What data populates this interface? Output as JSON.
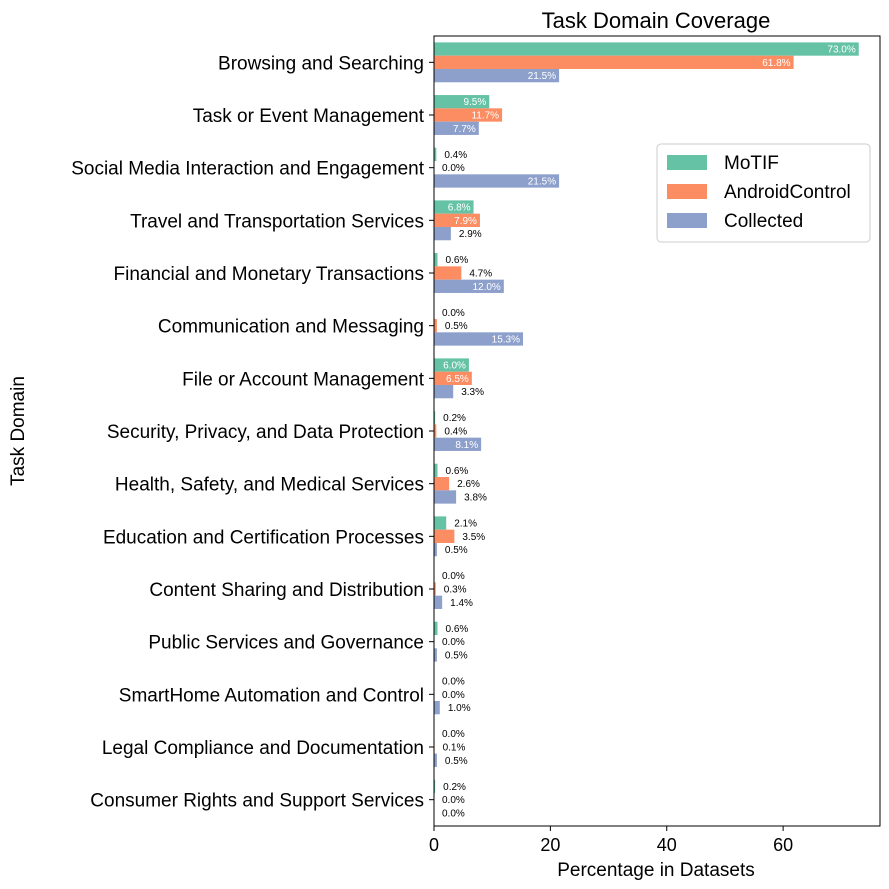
{
  "chart_data": {
    "type": "bar",
    "orientation": "horizontal",
    "title": "Task Domain Coverage",
    "xlabel": "Percentage in Datasets",
    "ylabel": "Task Domain",
    "xlim": [
      0,
      76.65
    ],
    "xticks": [
      0,
      20,
      40,
      60
    ],
    "grid": false,
    "legend_position": "upper-right",
    "categories": [
      "Browsing and Searching",
      "Task or Event Management",
      "Social Media Interaction and Engagement",
      "Travel and Transportation Services",
      "Financial and Monetary Transactions",
      "Communication and Messaging",
      "File or Account Management",
      "Security, Privacy, and Data Protection",
      "Health, Safety, and Medical Services",
      "Education and Certification Processes",
      "Content Sharing and Distribution",
      "Public Services and Governance",
      "SmartHome Automation and Control",
      "Legal Compliance and Documentation",
      "Consumer Rights and Support Services"
    ],
    "series": [
      {
        "name": "MoTIF",
        "color": "#66c2a5",
        "values": [
          73.0,
          9.5,
          0.4,
          6.8,
          0.6,
          0.0,
          6.0,
          0.2,
          0.6,
          2.1,
          0.0,
          0.6,
          0.0,
          0.0,
          0.2
        ],
        "labels": [
          "73.0%",
          "9.5%",
          "0.4%",
          "6.8%",
          "0.6%",
          "0.0%",
          "6.0%",
          "0.2%",
          "0.6%",
          "2.1%",
          "0.0%",
          "0.6%",
          "0.0%",
          "0.0%",
          "0.2%"
        ]
      },
      {
        "name": "AndroidControl",
        "color": "#fc8d62",
        "values": [
          61.8,
          11.7,
          0.0,
          7.9,
          4.7,
          0.5,
          6.5,
          0.4,
          2.6,
          3.5,
          0.3,
          0.0,
          0.0,
          0.1,
          0.0
        ],
        "labels": [
          "61.8%",
          "11.7%",
          "0.0%",
          "7.9%",
          "4.7%",
          "0.5%",
          "6.5%",
          "0.4%",
          "2.6%",
          "3.5%",
          "0.3%",
          "0.0%",
          "0.0%",
          "0.1%",
          "0.0%"
        ]
      },
      {
        "name": "Collected",
        "color": "#8da0cb",
        "values": [
          21.5,
          7.7,
          21.5,
          2.9,
          12.0,
          15.3,
          3.3,
          8.1,
          3.8,
          0.5,
          1.4,
          0.5,
          1.0,
          0.5,
          0.0
        ],
        "labels": [
          "21.5%",
          "7.7%",
          "21.5%",
          "2.9%",
          "12.0%",
          "15.3%",
          "3.3%",
          "8.1%",
          "3.8%",
          "0.5%",
          "1.4%",
          "0.5%",
          "1.0%",
          "0.5%",
          "0.0%"
        ]
      }
    ]
  }
}
